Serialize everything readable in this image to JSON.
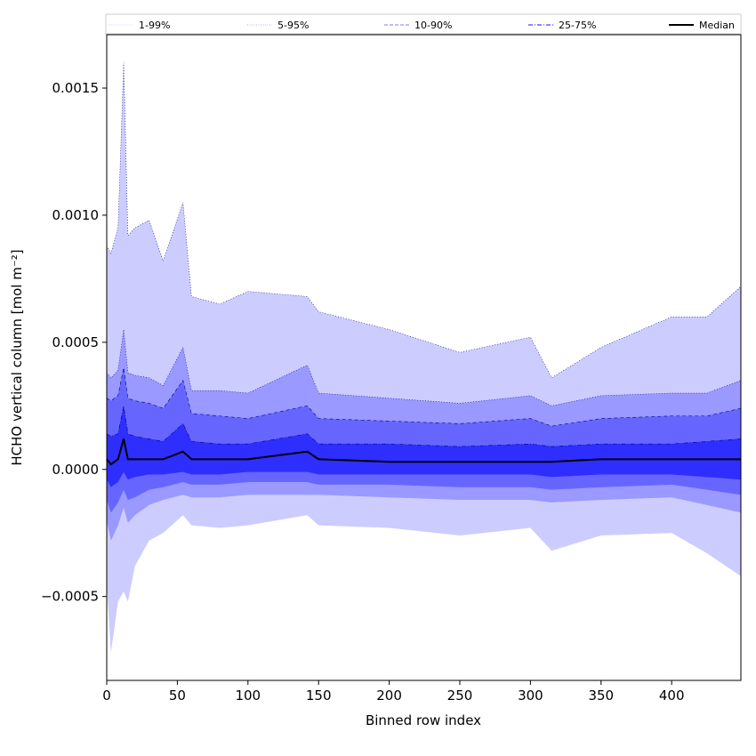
{
  "chart_data": {
    "type": "area",
    "title": "",
    "xlabel": "Binned row index",
    "ylabel": "HCHO vertical column [mol m⁻²]",
    "xlim": [
      0,
      449
    ],
    "ylim": [
      -0.00083,
      0.00171
    ],
    "x_ticks": [
      0,
      50,
      100,
      150,
      200,
      250,
      300,
      350,
      400
    ],
    "x_tick_labels": [
      "0",
      "50",
      "100",
      "150",
      "200",
      "250",
      "300",
      "350",
      "400"
    ],
    "y_ticks": [
      -0.0005,
      0.0,
      0.0005,
      0.001,
      0.0015
    ],
    "y_tick_labels": [
      "−0.0005",
      "0.0000",
      "0.0005",
      "0.0010",
      "0.0015"
    ],
    "grid": false,
    "legend_position": "top",
    "legend": [
      {
        "label": "1-99%",
        "style": "dotted",
        "color": "#c8c8ff"
      },
      {
        "label": "5-95%",
        "style": "dotted",
        "color": "#9a9aff"
      },
      {
        "label": "10-90%",
        "style": "dashed",
        "color": "#7878ff"
      },
      {
        "label": "25-75%",
        "style": "dashdot",
        "color": "#4545ff"
      },
      {
        "label": "Median",
        "style": "solid",
        "color": "#000000"
      }
    ],
    "colors": {
      "band_1_99": "#ccccff",
      "band_5_95": "#9999ff",
      "band_10_90": "#6666ff",
      "band_25_75": "#2e2eff",
      "median": "#000000",
      "band_edge": "#00008b"
    },
    "anchor_x": [
      0,
      3,
      8,
      12,
      15,
      20,
      30,
      40,
      54,
      60,
      80,
      100,
      142,
      150,
      200,
      250,
      300,
      315,
      350,
      400,
      425,
      449
    ],
    "series": [
      {
        "name": "1-99%",
        "upper": [
          0.00088,
          0.00085,
          0.00095,
          0.0016,
          0.00092,
          0.00095,
          0.00098,
          0.00082,
          0.00105,
          0.00068,
          0.00065,
          0.0007,
          0.00068,
          0.00062,
          0.00055,
          0.00046,
          0.00052,
          0.00036,
          0.00048,
          0.0006,
          0.0006,
          0.00072
        ],
        "lower": [
          -0.00045,
          -0.00072,
          -0.00052,
          -0.00048,
          -0.00052,
          -0.00038,
          -0.00028,
          -0.00025,
          -0.00018,
          -0.00022,
          -0.00023,
          -0.00022,
          -0.00018,
          -0.00022,
          -0.00023,
          -0.00026,
          -0.00023,
          -0.00032,
          -0.00026,
          -0.00025,
          -0.00033,
          -0.00042
        ]
      },
      {
        "name": "5-95%",
        "upper": [
          0.00038,
          0.00036,
          0.00039,
          0.00055,
          0.00038,
          0.00037,
          0.00036,
          0.00033,
          0.00048,
          0.00031,
          0.00031,
          0.0003,
          0.00041,
          0.0003,
          0.00028,
          0.00026,
          0.00029,
          0.00025,
          0.00029,
          0.0003,
          0.0003,
          0.00035
        ],
        "lower": [
          -0.0002,
          -0.00028,
          -0.00022,
          -0.00015,
          -0.00021,
          -0.00018,
          -0.00014,
          -0.00012,
          -0.0001,
          -0.00011,
          -0.00011,
          -0.0001,
          -0.0001,
          -0.0001,
          -0.00011,
          -0.00012,
          -0.00012,
          -0.00013,
          -0.00012,
          -0.00011,
          -0.00014,
          -0.00017
        ]
      },
      {
        "name": "10-90%",
        "upper": [
          0.00028,
          0.00027,
          0.00029,
          0.0004,
          0.00028,
          0.00027,
          0.00026,
          0.00024,
          0.00035,
          0.00022,
          0.00021,
          0.0002,
          0.00025,
          0.0002,
          0.00019,
          0.00018,
          0.0002,
          0.00017,
          0.0002,
          0.00021,
          0.00021,
          0.00024
        ],
        "lower": [
          -0.00012,
          -0.00017,
          -0.00013,
          -8e-05,
          -0.00012,
          -0.00011,
          -8e-05,
          -7e-05,
          -5e-05,
          -6e-05,
          -6e-05,
          -5e-05,
          -5e-05,
          -6e-05,
          -6e-05,
          -7e-05,
          -7e-05,
          -8e-05,
          -7e-05,
          -6e-05,
          -8e-05,
          -0.0001
        ]
      },
      {
        "name": "25-75%",
        "upper": [
          0.00014,
          0.00013,
          0.00014,
          0.00025,
          0.00014,
          0.00013,
          0.00012,
          0.00011,
          0.00018,
          0.00011,
          0.0001,
          0.0001,
          0.00014,
          0.0001,
          0.0001,
          9e-05,
          0.0001,
          9e-05,
          0.0001,
          0.0001,
          0.00011,
          0.00012
        ],
        "lower": [
          -4e-05,
          -7e-05,
          -5e-05,
          -1e-05,
          -4e-05,
          -3e-05,
          -2e-05,
          -2e-05,
          -1e-05,
          -2e-05,
          -2e-05,
          -1e-05,
          -1e-05,
          -2e-05,
          -2e-05,
          -2e-05,
          -2e-05,
          -3e-05,
          -2e-05,
          -2e-05,
          -3e-05,
          -4e-05
        ]
      },
      {
        "name": "Median",
        "values": [
          4e-05,
          2e-05,
          4e-05,
          0.00012,
          4e-05,
          4e-05,
          4e-05,
          4e-05,
          7e-05,
          4e-05,
          4e-05,
          4e-05,
          7e-05,
          4e-05,
          3e-05,
          3e-05,
          3e-05,
          3e-05,
          4e-05,
          4e-05,
          4e-05,
          4e-05
        ]
      }
    ]
  }
}
